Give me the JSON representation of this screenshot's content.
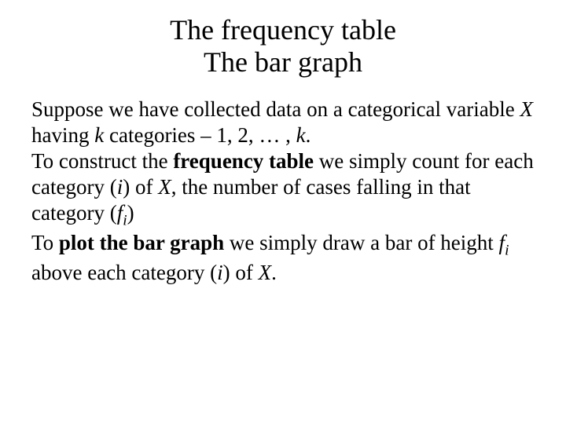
{
  "title": {
    "line1": "The frequency table",
    "line2": "The bar graph"
  },
  "paragraphs": {
    "p1a": "Suppose we have collected data on a categorical variable ",
    "p1_X": "X",
    "p1b": " having ",
    "p1_k": "k",
    "p1c": " categories – 1, 2, … , ",
    "p1_k2": "k",
    "p1d": ".",
    "p2a": "To construct the ",
    "p2_bold": "frequency table",
    "p2b": " we simply count for each category (",
    "p2_i": "i",
    "p2c": ") of ",
    "p2_X": "X",
    "p2d": ", the number of cases falling in that category (",
    "p2_f": "f",
    "p2_fi": "i",
    "p2e": ")",
    "p3a": "To ",
    "p3_bold": "plot the bar graph",
    "p3b": " we simply draw a bar of height ",
    "p3_f": "f",
    "p3_fi": "i",
    "p3c": " above each category (",
    "p3_i": "i",
    "p3d": ") of ",
    "p3_X": "X",
    "p3e": "."
  },
  "style": {
    "background_color": "#ffffff",
    "text_color": "#000000",
    "title_fontsize": 36,
    "body_fontsize": 27,
    "font_family": "Times New Roman"
  }
}
